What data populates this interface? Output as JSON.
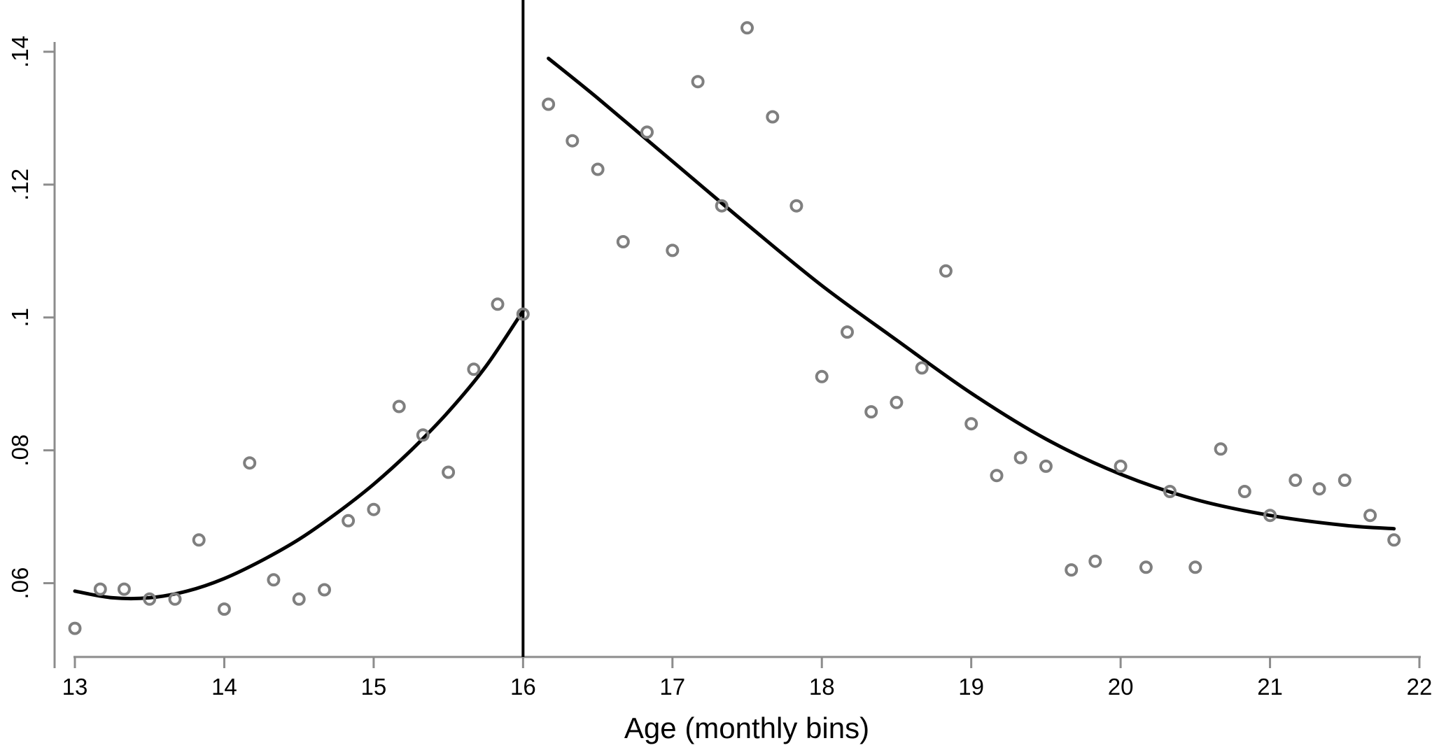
{
  "chart_data": {
    "type": "scatter",
    "xlabel": "Age (monthly bins)",
    "ylabel": "",
    "xlim": [
      13,
      22
    ],
    "ylim": [
      0.051,
      0.146
    ],
    "xticks": [
      {
        "value": 13,
        "label": "13"
      },
      {
        "value": 14,
        "label": "14"
      },
      {
        "value": 15,
        "label": "15"
      },
      {
        "value": 16,
        "label": "16"
      },
      {
        "value": 17,
        "label": "17"
      },
      {
        "value": 18,
        "label": "18"
      },
      {
        "value": 19,
        "label": "19"
      },
      {
        "value": 20,
        "label": "20"
      },
      {
        "value": 21,
        "label": "21"
      },
      {
        "value": 22,
        "label": "22"
      }
    ],
    "yticks": [
      {
        "value": 0.06,
        "label": ".06"
      },
      {
        "value": 0.08,
        "label": ".08"
      },
      {
        "value": 0.1,
        "label": ".1"
      },
      {
        "value": 0.12,
        "label": ".12"
      },
      {
        "value": 0.14,
        "label": ".14"
      }
    ],
    "grid": false,
    "cutoff_x": 16,
    "colors": {
      "points": "#7f7f7f",
      "fit": "#000000",
      "axes": "#8c8c8c"
    },
    "points": [
      [
        13.0,
        0.0532
      ],
      [
        13.17,
        0.0591
      ],
      [
        13.33,
        0.0591
      ],
      [
        13.5,
        0.0576
      ],
      [
        13.67,
        0.0576
      ],
      [
        13.83,
        0.0665
      ],
      [
        14.0,
        0.0561
      ],
      [
        14.17,
        0.0781
      ],
      [
        14.33,
        0.0605
      ],
      [
        14.5,
        0.0576
      ],
      [
        14.67,
        0.059
      ],
      [
        14.83,
        0.0694
      ],
      [
        15.0,
        0.0711
      ],
      [
        15.17,
        0.0866
      ],
      [
        15.33,
        0.0823
      ],
      [
        15.5,
        0.0767
      ],
      [
        15.67,
        0.0922
      ],
      [
        15.83,
        0.102
      ],
      [
        16.0,
        0.1005
      ],
      [
        16.17,
        0.1321
      ],
      [
        16.33,
        0.1266
      ],
      [
        16.5,
        0.1223
      ],
      [
        16.67,
        0.1114
      ],
      [
        16.83,
        0.1279
      ],
      [
        17.0,
        0.1101
      ],
      [
        17.17,
        0.1355
      ],
      [
        17.33,
        0.1168
      ],
      [
        17.5,
        0.1436
      ],
      [
        17.67,
        0.1302
      ],
      [
        17.83,
        0.1168
      ],
      [
        18.0,
        0.0911
      ],
      [
        18.17,
        0.0978
      ],
      [
        18.33,
        0.0858
      ],
      [
        18.5,
        0.0872
      ],
      [
        18.67,
        0.0924
      ],
      [
        18.83,
        0.107
      ],
      [
        19.0,
        0.084
      ],
      [
        19.17,
        0.0762
      ],
      [
        19.33,
        0.0789
      ],
      [
        19.5,
        0.0776
      ],
      [
        19.67,
        0.062
      ],
      [
        19.83,
        0.0633
      ],
      [
        20.0,
        0.0776
      ],
      [
        20.17,
        0.0624
      ],
      [
        20.33,
        0.0738
      ],
      [
        20.5,
        0.0624
      ],
      [
        20.67,
        0.0802
      ],
      [
        20.83,
        0.0738
      ],
      [
        21.0,
        0.0702
      ],
      [
        21.17,
        0.0755
      ],
      [
        21.33,
        0.0742
      ],
      [
        21.5,
        0.0755
      ],
      [
        21.67,
        0.0702
      ],
      [
        21.83,
        0.0665
      ]
    ],
    "fit_left": [
      [
        13.0,
        0.0588
      ],
      [
        13.25,
        0.0578
      ],
      [
        13.5,
        0.0578
      ],
      [
        13.75,
        0.0588
      ],
      [
        14.0,
        0.0607
      ],
      [
        14.25,
        0.0634
      ],
      [
        14.5,
        0.0666
      ],
      [
        14.75,
        0.0705
      ],
      [
        15.0,
        0.0749
      ],
      [
        15.25,
        0.08
      ],
      [
        15.5,
        0.0858
      ],
      [
        15.75,
        0.0926
      ],
      [
        16.0,
        0.101
      ]
    ],
    "fit_right": [
      [
        16.17,
        0.139
      ],
      [
        16.5,
        0.133
      ],
      [
        17.0,
        0.1235
      ],
      [
        17.5,
        0.114
      ],
      [
        18.0,
        0.1048
      ],
      [
        18.5,
        0.0966
      ],
      [
        19.0,
        0.0886
      ],
      [
        19.5,
        0.0817
      ],
      [
        20.0,
        0.0764
      ],
      [
        20.5,
        0.0726
      ],
      [
        21.0,
        0.0702
      ],
      [
        21.5,
        0.0687
      ],
      [
        21.83,
        0.0682
      ]
    ]
  }
}
